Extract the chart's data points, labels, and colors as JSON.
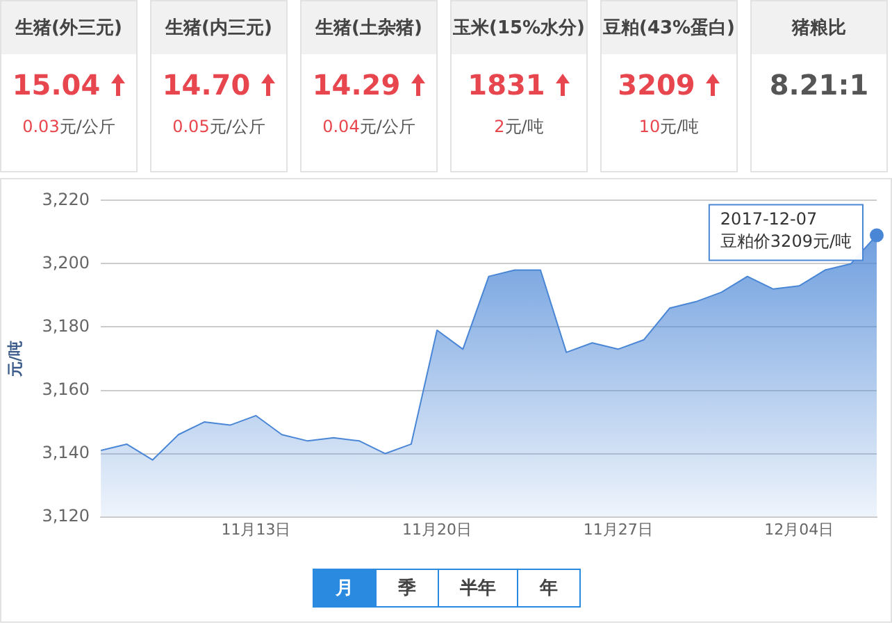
{
  "chart_data": [
    {
      "type": "other",
      "categories": [
        "生猪(外三元)",
        "生猪(内三元)",
        "生猪(土杂猪)",
        "玉米(15%水分)",
        "豆粕(43%蛋白)",
        "猪粮比"
      ],
      "value_labels": [
        "15.04",
        "14.70",
        "14.29",
        "1831",
        "3209",
        "8.21:1"
      ],
      "annotations": [
        "0.03元/公斤",
        "0.05元/公斤",
        "0.04元/公斤",
        "2元/吨",
        "10元/吨"
      ]
    },
    {
      "type": "area",
      "ylabel": "元/吨",
      "color": "#4a86d6",
      "x": [
        "2017-11-07",
        "2017-11-08",
        "2017-11-09",
        "2017-11-10",
        "2017-11-11",
        "2017-11-12",
        "2017-11-13",
        "2017-11-14",
        "2017-11-15",
        "2017-11-16",
        "2017-11-17",
        "2017-11-18",
        "2017-11-19",
        "2017-11-20",
        "2017-11-21",
        "2017-11-22",
        "2017-11-23",
        "2017-11-24",
        "2017-11-25",
        "2017-11-26",
        "2017-11-27",
        "2017-11-28",
        "2017-11-29",
        "2017-11-30",
        "2017-12-01",
        "2017-12-02",
        "2017-12-03",
        "2017-12-04",
        "2017-12-05",
        "2017-12-06",
        "2017-12-07"
      ],
      "values": [
        3141,
        3143,
        3138,
        3146,
        3150,
        3149,
        3152,
        3146,
        3144,
        3145,
        3144,
        3140,
        3143,
        3179,
        3173,
        3196,
        3198,
        3198,
        3172,
        3175,
        3173,
        3176,
        3186,
        3188,
        3191,
        3196,
        3192,
        3193,
        3198,
        3200,
        3209
      ],
      "xlim": [
        "2017-11-07",
        "2017-12-07"
      ],
      "xticks": [
        {
          "value": "2017-11-13",
          "label": "11月13日"
        },
        {
          "value": "2017-11-20",
          "label": "11月20日"
        },
        {
          "value": "2017-11-27",
          "label": "11月27日"
        },
        {
          "value": "2017-12-04",
          "label": "12月04日"
        }
      ],
      "ylim": [
        3120,
        3220
      ],
      "yticks": [
        {
          "value": 3120,
          "label": "3,120"
        },
        {
          "value": 3140,
          "label": "3,140"
        },
        {
          "value": 3160,
          "label": "3,160"
        },
        {
          "value": 3180,
          "label": "3,180"
        },
        {
          "value": 3200,
          "label": "3,200"
        },
        {
          "value": 3220,
          "label": "3,220"
        }
      ],
      "grid": "y",
      "legend": false,
      "marker": "none",
      "annotations": [
        {
          "text": "2017-12-07\n豆粕价3209元/吨",
          "x": "2017-12-07",
          "y": 3209
        },
        "月",
        "季",
        "半年",
        "年"
      ]
    }
  ]
}
